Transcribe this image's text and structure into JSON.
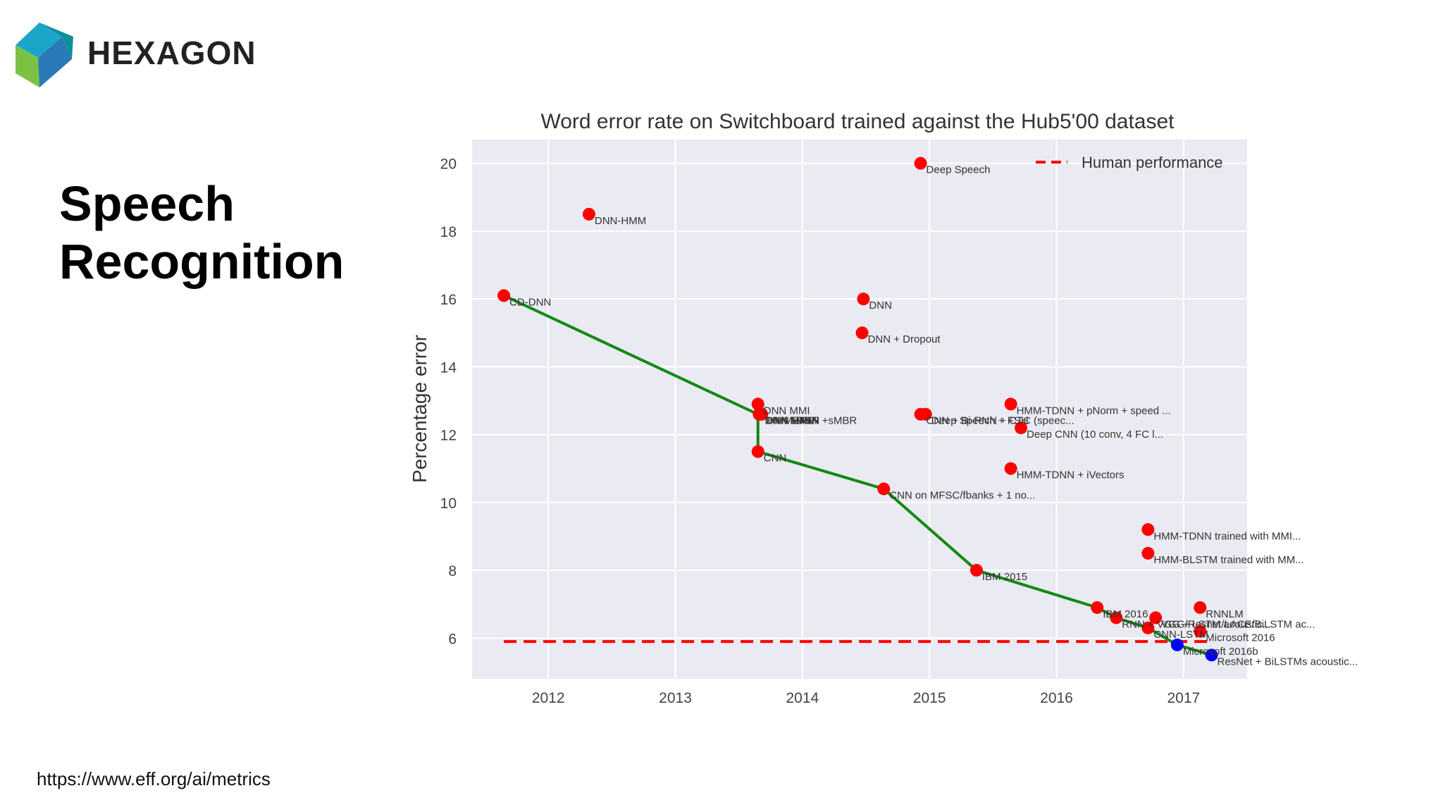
{
  "logo": {
    "text": "HEXAGON"
  },
  "slide": {
    "title_line1": "Speech",
    "title_line2": "Recognition",
    "source": "https://www.eff.org/ai/metrics"
  },
  "colors": {
    "plot_bg": "#eaeaf2",
    "grid": "#ffffff",
    "points": "#ff0000",
    "best_points": "#0000ff",
    "frontier": "#118811",
    "human": "#ff0000"
  },
  "chart_data": {
    "type": "scatter",
    "title": "Word error rate on Switchboard trained against the Hub5'00 dataset",
    "xlabel": "",
    "ylabel": "Percentage error",
    "xlim": [
      2011.4,
      2017.5
    ],
    "ylim": [
      4.8,
      20.7
    ],
    "xticks": [
      2012,
      2013,
      2014,
      2015,
      2016,
      2017
    ],
    "yticks": [
      6,
      8,
      10,
      12,
      14,
      16,
      18,
      20
    ],
    "grid": true,
    "legend": {
      "placement": "top-right",
      "entries": [
        "Human performance"
      ]
    },
    "human_performance": 5.9,
    "points": [
      {
        "x": 2011.65,
        "y": 16.1,
        "label": "CD-DNN",
        "best": false
      },
      {
        "x": 2012.32,
        "y": 18.5,
        "label": "DNN-HMM",
        "best": false
      },
      {
        "x": 2013.65,
        "y": 12.9,
        "label": "DNN MMI",
        "best": false
      },
      {
        "x": 2013.66,
        "y": 12.6,
        "label": "DNN sMBR",
        "best": false
      },
      {
        "x": 2013.66,
        "y": 12.6,
        "label": "DNN MPE",
        "best": false
      },
      {
        "x": 2013.67,
        "y": 12.6,
        "label": "DNN BMMI",
        "best": false
      },
      {
        "x": 2013.68,
        "y": 12.6,
        "label": "HMM-DNN +sMBR",
        "best": false
      },
      {
        "x": 2013.65,
        "y": 11.5,
        "label": "CNN",
        "best": false
      },
      {
        "x": 2014.48,
        "y": 16.0,
        "label": "DNN",
        "best": false
      },
      {
        "x": 2014.47,
        "y": 15.0,
        "label": "DNN + Dropout",
        "best": false
      },
      {
        "x": 2014.64,
        "y": 10.4,
        "label": "CNN on MFSC/fbanks + 1 no...",
        "best": false
      },
      {
        "x": 2014.93,
        "y": 20.0,
        "label": "Deep Speech",
        "best": false
      },
      {
        "x": 2014.93,
        "y": 12.6,
        "label": "CNN + Bi-RNN + CTC (speec...",
        "best": false
      },
      {
        "x": 2014.97,
        "y": 12.6,
        "label": "Deep Speech + FSH",
        "best": false
      },
      {
        "x": 2015.37,
        "y": 8.0,
        "label": "IBM 2015",
        "best": false
      },
      {
        "x": 2015.64,
        "y": 12.9,
        "label": "HMM-TDNN + pNorm + speed ...",
        "best": false
      },
      {
        "x": 2015.72,
        "y": 12.2,
        "label": "Deep CNN (10 conv, 4 FC l...",
        "best": false
      },
      {
        "x": 2015.64,
        "y": 11.0,
        "label": "HMM-TDNN + iVectors",
        "best": false
      },
      {
        "x": 2016.32,
        "y": 6.9,
        "label": "IBM 2016",
        "best": false
      },
      {
        "x": 2016.47,
        "y": 6.6,
        "label": "RNN + VGG + LSTM acoustic...",
        "best": false
      },
      {
        "x": 2016.72,
        "y": 9.2,
        "label": "HMM-TDNN trained with MMI...",
        "best": false
      },
      {
        "x": 2016.72,
        "y": 8.5,
        "label": "HMM-BLSTM trained with MM...",
        "best": false
      },
      {
        "x": 2016.72,
        "y": 6.3,
        "label": "CNN-LSTM",
        "best": false
      },
      {
        "x": 2016.78,
        "y": 6.6,
        "label": "VGG/Resnet/LACE/BiLSTM ac...",
        "best": false
      },
      {
        "x": 2016.95,
        "y": 5.8,
        "label": "Microsoft 2016b",
        "best": true
      },
      {
        "x": 2017.13,
        "y": 6.9,
        "label": "RNNLM",
        "best": false
      },
      {
        "x": 2017.13,
        "y": 6.2,
        "label": "Microsoft 2016",
        "best": false
      },
      {
        "x": 2017.22,
        "y": 5.5,
        "label": "ResNet + BiLSTMs acoustic...",
        "best": true
      }
    ],
    "frontier": [
      {
        "x": 2011.65,
        "y": 16.1
      },
      {
        "x": 2013.65,
        "y": 12.6
      },
      {
        "x": 2013.65,
        "y": 11.5
      },
      {
        "x": 2014.64,
        "y": 10.4
      },
      {
        "x": 2015.37,
        "y": 8.0
      },
      {
        "x": 2016.32,
        "y": 6.9
      },
      {
        "x": 2016.47,
        "y": 6.6
      },
      {
        "x": 2016.72,
        "y": 6.3
      },
      {
        "x": 2016.95,
        "y": 5.8
      },
      {
        "x": 2017.22,
        "y": 5.5
      }
    ]
  }
}
